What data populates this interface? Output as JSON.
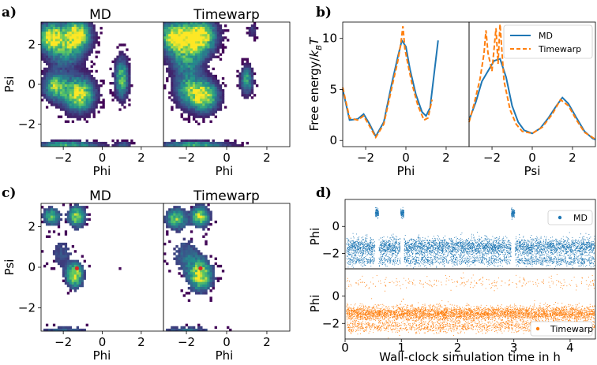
{
  "panel_labels": {
    "a": "a)",
    "b": "b)",
    "c": "c)",
    "d": "d)"
  },
  "chart_data": [
    {
      "type": "heatmap",
      "panel": "a",
      "title": "MD",
      "xlabel": "Phi",
      "ylabel": "Psi",
      "xlim": [
        -3.14,
        3.14
      ],
      "ylim": [
        -3.14,
        3.14
      ],
      "xticks": [
        -2,
        0,
        2
      ],
      "yticks": [
        -2,
        0,
        2
      ],
      "blobs": [
        {
          "x": -2.6,
          "y": 2.4,
          "sx": 0.45,
          "sy": 0.45,
          "w": 1.0
        },
        {
          "x": -1.3,
          "y": 2.5,
          "sx": 0.45,
          "sy": 0.5,
          "w": 1.0
        },
        {
          "x": -1.9,
          "y": 1.6,
          "sx": 0.6,
          "sy": 0.55,
          "w": 0.45
        },
        {
          "x": -2.4,
          "y": -0.1,
          "sx": 0.4,
          "sy": 0.45,
          "w": 0.75
        },
        {
          "x": -1.2,
          "y": -0.5,
          "sx": 0.5,
          "sy": 0.55,
          "w": 1.0
        },
        {
          "x": 1.0,
          "y": 0.3,
          "sx": 0.22,
          "sy": 0.65,
          "w": 0.7
        },
        {
          "x": -1.8,
          "y": -3.05,
          "sx": 1.1,
          "sy": 0.12,
          "w": 0.6
        },
        {
          "x": 1.1,
          "y": -3.05,
          "sx": 0.25,
          "sy": 0.12,
          "w": 0.3
        }
      ]
    },
    {
      "type": "heatmap",
      "panel": "a",
      "title": "Timewarp",
      "xlabel": "Phi",
      "xlim": [
        -3.14,
        3.14
      ],
      "ylim": [
        -3.14,
        3.14
      ],
      "xticks": [
        -2,
        0,
        2
      ],
      "blobs": [
        {
          "x": -2.5,
          "y": 2.4,
          "sx": 0.55,
          "sy": 0.5,
          "w": 1.0
        },
        {
          "x": -1.3,
          "y": 2.4,
          "sx": 0.5,
          "sy": 0.55,
          "w": 1.0
        },
        {
          "x": -2.0,
          "y": 1.3,
          "sx": 0.55,
          "sy": 0.6,
          "w": 0.5
        },
        {
          "x": -1.9,
          "y": -0.3,
          "sx": 0.45,
          "sy": 0.55,
          "w": 0.55
        },
        {
          "x": -1.1,
          "y": -0.6,
          "sx": 0.45,
          "sy": 0.5,
          "w": 0.9
        },
        {
          "x": 1.0,
          "y": 0.2,
          "sx": 0.2,
          "sy": 0.45,
          "w": 0.55
        },
        {
          "x": -1.6,
          "y": -3.05,
          "sx": 1.1,
          "sy": 0.12,
          "w": 0.6
        },
        {
          "x": 1.3,
          "y": 2.7,
          "sx": 0.15,
          "sy": 0.25,
          "w": 0.2
        }
      ]
    },
    {
      "type": "line",
      "panel": "b",
      "ylabel": "Free energy/k_BT",
      "sub_x": [
        {
          "xlabel": "Phi",
          "xlim": [
            -3.14,
            3.14
          ],
          "xticks": [
            -2,
            0,
            2
          ]
        },
        {
          "xlabel": "Psi",
          "xlim": [
            -3.14,
            3.14
          ],
          "xticks": [
            -2,
            0,
            2
          ]
        }
      ],
      "ylim": [
        -0.6,
        11.6
      ],
      "yticks": [
        0,
        5,
        10
      ],
      "series": [
        {
          "name": "MD",
          "color": "#1f77b4",
          "dash": "solid",
          "phi": {
            "x": [
              -3.14,
              -2.8,
              -2.4,
              -2.1,
              -1.8,
              -1.5,
              -1.1,
              -0.7,
              -0.4,
              -0.2,
              0.0,
              0.2,
              0.5,
              0.8,
              1.0,
              1.2,
              1.4,
              1.6
            ],
            "y": [
              5.0,
              2.0,
              2.1,
              2.6,
              1.6,
              0.4,
              1.8,
              5.6,
              8.2,
              9.8,
              9.2,
              7.0,
              4.5,
              2.8,
              2.4,
              3.2,
              6.5,
              9.8
            ]
          },
          "psi": {
            "x": [
              -3.14,
              -2.8,
              -2.5,
              -2.2,
              -1.9,
              -1.6,
              -1.3,
              -1.0,
              -0.7,
              -0.4,
              0.0,
              0.4,
              0.8,
              1.2,
              1.5,
              1.8,
              2.2,
              2.6,
              3.0,
              3.14
            ],
            "y": [
              2.0,
              3.8,
              5.8,
              6.8,
              7.8,
              8.0,
              6.2,
              3.4,
              1.8,
              1.0,
              0.7,
              1.2,
              2.2,
              3.4,
              4.2,
              3.6,
              2.2,
              0.9,
              0.2,
              0.1
            ]
          }
        },
        {
          "name": "Timewarp",
          "color": "#ff7f0e",
          "dash": "dashed",
          "phi": {
            "x": [
              -3.14,
              -2.8,
              -2.4,
              -2.1,
              -1.8,
              -1.5,
              -1.1,
              -0.7,
              -0.4,
              -0.25,
              -0.15,
              -0.05,
              0.1,
              0.3,
              0.6,
              0.9,
              1.1,
              1.3
            ],
            "y": [
              5.2,
              2.2,
              2.0,
              2.4,
              1.4,
              0.3,
              1.6,
              5.2,
              7.8,
              9.5,
              11.2,
              9.0,
              7.5,
              5.6,
              3.4,
              2.0,
              2.2,
              4.0
            ]
          },
          "psi": {
            "x": [
              -3.14,
              -2.9,
              -2.6,
              -2.4,
              -2.3,
              -2.2,
              -2.0,
              -1.8,
              -1.7,
              -1.6,
              -1.4,
              -1.1,
              -0.8,
              -0.5,
              0.0,
              0.5,
              1.0,
              1.4,
              1.8,
              2.2,
              2.6,
              3.0,
              3.14
            ],
            "y": [
              1.8,
              3.5,
              6.0,
              8.5,
              10.8,
              8.6,
              6.8,
              11.0,
              7.5,
              11.4,
              5.8,
              3.0,
              1.6,
              0.9,
              0.7,
              1.3,
              2.6,
              4.0,
              3.4,
              2.0,
              0.8,
              0.3,
              0.1
            ]
          }
        }
      ]
    },
    {
      "type": "heatmap",
      "panel": "c",
      "title": "MD",
      "xlabel": "Phi",
      "ylabel": "Psi",
      "xlim": [
        -3.14,
        3.14
      ],
      "ylim": [
        -3.14,
        3.14
      ],
      "xticks": [
        -2,
        0,
        2
      ],
      "yticks": [
        -2,
        0,
        2
      ],
      "blobs": [
        {
          "x": -2.6,
          "y": 2.5,
          "sx": 0.3,
          "sy": 0.3,
          "w": 0.7
        },
        {
          "x": -1.3,
          "y": 2.5,
          "sx": 0.3,
          "sy": 0.35,
          "w": 0.9
        },
        {
          "x": -1.4,
          "y": -0.4,
          "sx": 0.3,
          "sy": 0.4,
          "w": 1.0
        },
        {
          "x": -2.1,
          "y": 0.7,
          "sx": 0.45,
          "sy": 0.6,
          "w": 0.25
        },
        {
          "x": 0.9,
          "y": 0.5,
          "sx": 0.05,
          "sy": 0.3,
          "w": 0.15
        },
        {
          "x": -2.0,
          "y": -3.05,
          "sx": 1.0,
          "sy": 0.1,
          "w": 0.35
        }
      ],
      "marker": {
        "x": -1.3,
        "y": -0.05,
        "color": "#d62728"
      }
    },
    {
      "type": "heatmap",
      "panel": "c",
      "title": "Timewarp",
      "xlabel": "Phi",
      "xlim": [
        -3.14,
        3.14
      ],
      "ylim": [
        -3.14,
        3.14
      ],
      "xticks": [
        -2,
        0,
        2
      ],
      "blobs": [
        {
          "x": -2.5,
          "y": 2.4,
          "sx": 0.35,
          "sy": 0.35,
          "w": 0.8
        },
        {
          "x": -1.3,
          "y": 2.5,
          "sx": 0.3,
          "sy": 0.35,
          "w": 0.9
        },
        {
          "x": -1.3,
          "y": -0.4,
          "sx": 0.4,
          "sy": 0.5,
          "w": 1.0
        },
        {
          "x": -2.0,
          "y": 0.6,
          "sx": 0.5,
          "sy": 0.6,
          "w": 0.35
        },
        {
          "x": -2.0,
          "y": -3.05,
          "sx": 1.0,
          "sy": 0.1,
          "w": 0.35
        }
      ],
      "marker": {
        "x": -1.3,
        "y": -0.05,
        "color": "#d62728"
      }
    },
    {
      "type": "scatter",
      "panel": "d",
      "xlabel": "Wall-clock simulation time in h",
      "xlim": [
        0,
        4.45
      ],
      "xticks": [
        0,
        1,
        2,
        3,
        4
      ],
      "subplots": [
        {
          "ylabel": "Phi",
          "legend": "MD",
          "legend_position": "top-right",
          "color": "#1f77b4",
          "ylim": [
            -3.14,
            2.0
          ],
          "yticks": [
            -2,
            0
          ],
          "main_band": {
            "center": -1.5,
            "spread": 0.6
          },
          "lower_band": {
            "center": -2.5,
            "spread": 0.35
          },
          "excursions": [
            {
              "t": 0.56,
              "phi": 1.0
            },
            {
              "t": 1.01,
              "phi": 1.0
            },
            {
              "t": 2.98,
              "phi": 1.0
            }
          ],
          "gaps": [
            0.56,
            1.01,
            2.98
          ]
        },
        {
          "ylabel": "Phi",
          "legend": "Timewarp",
          "legend_position": "bottom-right",
          "color": "#ff7f0e",
          "ylim": [
            -3.14,
            2.0
          ],
          "yticks": [
            -2,
            0
          ],
          "main_band": {
            "center": -1.25,
            "spread": 0.5
          },
          "lower_band": {
            "center": -2.2,
            "spread": 0.4
          },
          "sparse_band": {
            "center": 1.0,
            "spread": 0.25
          }
        }
      ]
    }
  ]
}
